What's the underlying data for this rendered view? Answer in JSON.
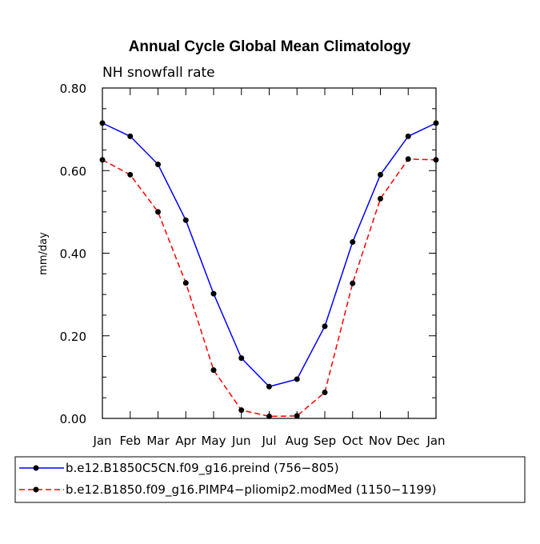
{
  "chart_data": {
    "type": "line",
    "title": "Annual Cycle Global Mean Climatology",
    "subtitle": "NH snowfall rate",
    "ylabel": "mm/day",
    "xlabel": "",
    "categories": [
      "Jan",
      "Feb",
      "Mar",
      "Apr",
      "May",
      "Jun",
      "Jul",
      "Aug",
      "Sep",
      "Oct",
      "Nov",
      "Dec",
      "Jan"
    ],
    "ylim": [
      0,
      0.8
    ],
    "yticks": [
      "0.00",
      "0.20",
      "0.40",
      "0.60",
      "0.80"
    ],
    "grid": false,
    "legend_position": "bottom",
    "series": [
      {
        "name": "b.e12.B1850C5CN.f09_g16.preind (756−805)",
        "color": "#0000ff",
        "dash": "solid",
        "values": [
          0.715,
          0.683,
          0.615,
          0.48,
          0.302,
          0.146,
          0.077,
          0.095,
          0.223,
          0.427,
          0.59,
          0.683,
          0.715
        ]
      },
      {
        "name": "b.e12.B1850.f09_g16.PIMP4−pliomip2.modMed (1150−1199)",
        "color": "#ff0000",
        "dash": "dashed",
        "values": [
          0.626,
          0.59,
          0.5,
          0.328,
          0.117,
          0.02,
          0.005,
          0.006,
          0.063,
          0.327,
          0.532,
          0.628,
          0.626
        ]
      }
    ]
  }
}
